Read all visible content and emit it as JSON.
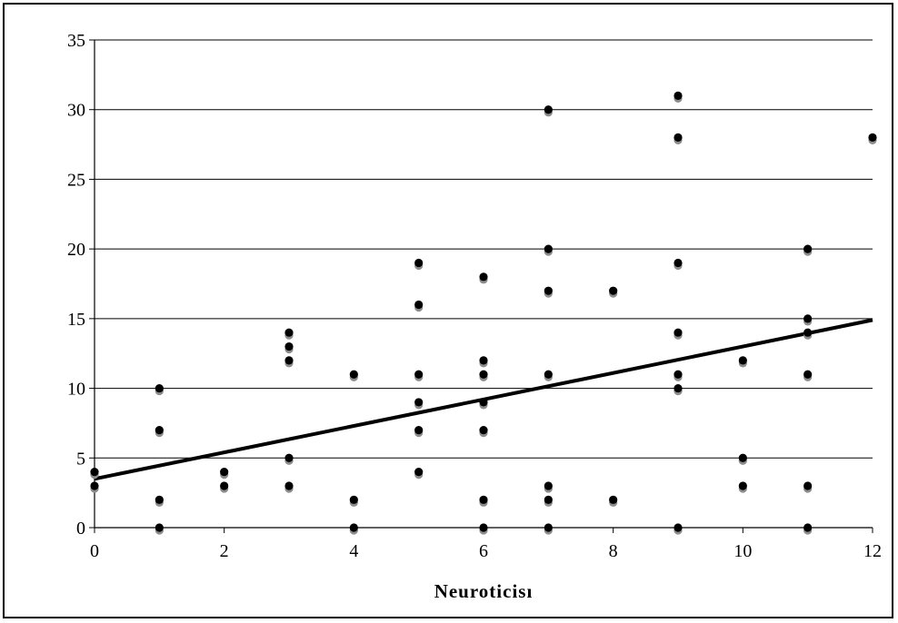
{
  "chart_data": {
    "type": "scatter",
    "title": "",
    "xlabel": "Neuroticisı",
    "ylabel": "",
    "xlim": [
      0,
      12
    ],
    "ylim": [
      0,
      35
    ],
    "x_ticks": [
      "0",
      "2",
      "4",
      "6",
      "8",
      "10",
      "12"
    ],
    "y_ticks": [
      "0",
      "5",
      "10",
      "15",
      "20",
      "25",
      "30",
      "35"
    ],
    "grid": "horizontal",
    "legend": "none",
    "colors": {
      "points": "#000000",
      "point_shadow": "#8c8c8c",
      "trend": "#000000",
      "grid": "#000000"
    },
    "series": [
      {
        "points": [
          [
            0,
            4
          ],
          [
            0,
            3
          ],
          [
            1,
            10
          ],
          [
            1,
            7
          ],
          [
            1,
            2
          ],
          [
            1,
            0
          ],
          [
            2,
            4
          ],
          [
            2,
            3
          ],
          [
            3,
            14
          ],
          [
            3,
            13
          ],
          [
            3,
            12
          ],
          [
            3,
            5
          ],
          [
            3,
            3
          ],
          [
            4,
            11
          ],
          [
            4,
            2
          ],
          [
            4,
            0
          ],
          [
            5,
            19
          ],
          [
            5,
            16
          ],
          [
            5,
            11
          ],
          [
            5,
            9
          ],
          [
            5,
            7
          ],
          [
            5,
            4
          ],
          [
            6,
            18
          ],
          [
            6,
            12
          ],
          [
            6,
            11
          ],
          [
            6,
            9
          ],
          [
            6,
            7
          ],
          [
            6,
            2
          ],
          [
            6,
            0
          ],
          [
            7,
            30
          ],
          [
            7,
            20
          ],
          [
            7,
            17
          ],
          [
            7,
            11
          ],
          [
            7,
            3
          ],
          [
            7,
            2
          ],
          [
            7,
            0
          ],
          [
            8,
            17
          ],
          [
            8,
            2
          ],
          [
            9,
            31
          ],
          [
            9,
            28
          ],
          [
            9,
            19
          ],
          [
            9,
            14
          ],
          [
            9,
            11
          ],
          [
            9,
            10
          ],
          [
            9,
            0
          ],
          [
            10,
            12
          ],
          [
            10,
            5
          ],
          [
            10,
            3
          ],
          [
            11,
            20
          ],
          [
            11,
            15
          ],
          [
            11,
            14
          ],
          [
            11,
            11
          ],
          [
            11,
            3
          ],
          [
            11,
            0
          ],
          [
            12,
            28
          ]
        ]
      }
    ],
    "trendline": {
      "x": [
        0,
        12
      ],
      "y": [
        3.5,
        14.9
      ]
    }
  }
}
